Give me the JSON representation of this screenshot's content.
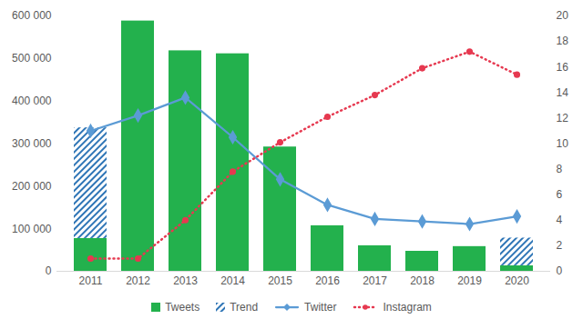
{
  "chart_data": {
    "type": "bar",
    "categories": [
      "2011",
      "2012",
      "2013",
      "2014",
      "2015",
      "2016",
      "2017",
      "2018",
      "2019",
      "2020"
    ],
    "stacked": true,
    "grid": false,
    "legend": "bottom",
    "ylim": [
      0,
      600000
    ],
    "yticks": [
      0,
      {
        "value": 100000,
        "label": "100 000"
      },
      {
        "value": 200000,
        "label": "200 000"
      },
      {
        "value": 300000,
        "label": "300 000"
      },
      {
        "value": 400000,
        "label": "400 000"
      },
      {
        "value": 500000,
        "label": "500 000"
      },
      {
        "value": 600000,
        "label": "600 000"
      }
    ],
    "y2lim": [
      0,
      20
    ],
    "y2ticks": [
      0,
      2,
      4,
      6,
      8,
      10,
      12,
      14,
      16,
      18,
      20
    ],
    "series": [
      {
        "name": "Tweets",
        "type": "bar",
        "color": "#23b14d",
        "values": [
          77000,
          588000,
          518000,
          511000,
          292000,
          107000,
          60000,
          47000,
          58000,
          13000
        ]
      },
      {
        "name": "Trend",
        "type": "bar",
        "color": "#2e75b6",
        "line_style": "hatched",
        "values": [
          260000,
          null,
          null,
          null,
          null,
          null,
          null,
          null,
          null,
          65000
        ]
      },
      {
        "name": "Twitter",
        "type": "line",
        "axis": "y2",
        "color": "#5b9bd5",
        "marker": "diamond",
        "line_style": "solid",
        "values": [
          11.0,
          12.2,
          13.6,
          10.5,
          7.2,
          5.2,
          4.1,
          3.9,
          3.7,
          4.3
        ]
      },
      {
        "name": "Instagram",
        "type": "line",
        "axis": "y2",
        "color": "#e63950",
        "marker": "circle",
        "line_style": "dotted",
        "values": [
          1.0,
          1.0,
          4.0,
          7.8,
          10.1,
          12.1,
          13.8,
          15.9,
          17.2,
          15.4
        ]
      }
    ]
  }
}
